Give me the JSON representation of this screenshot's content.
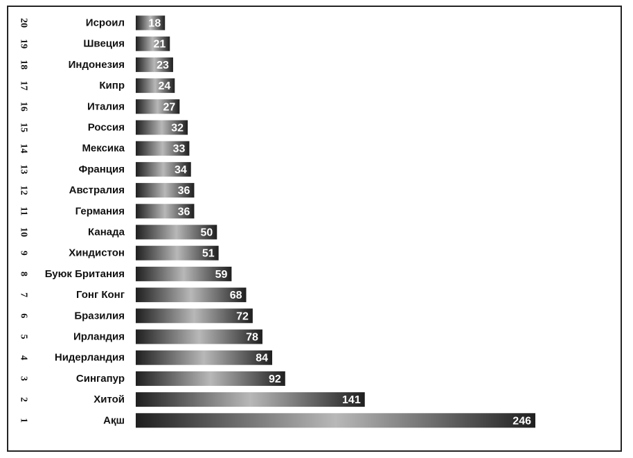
{
  "chart_data": {
    "type": "bar",
    "orientation": "horizontal",
    "title": "",
    "xlabel": "",
    "ylabel": "",
    "grid": false,
    "legend": "none",
    "xlim": [
      0,
      246
    ],
    "bar_color_dark": "#1f1f1f",
    "bar_color_light": "#b8b8b8",
    "rows": [
      {
        "rank": "20",
        "country": "Исроил",
        "value": 18
      },
      {
        "rank": "19",
        "country": "Швеция",
        "value": 21
      },
      {
        "rank": "18",
        "country": "Индонезия",
        "value": 23
      },
      {
        "rank": "17",
        "country": "Кипр",
        "value": 24
      },
      {
        "rank": "16",
        "country": "Италия",
        "value": 27
      },
      {
        "rank": "15",
        "country": "Россия",
        "value": 32
      },
      {
        "rank": "14",
        "country": "Мексика",
        "value": 33
      },
      {
        "rank": "13",
        "country": "Франция",
        "value": 34
      },
      {
        "rank": "12",
        "country": "Австралия",
        "value": 36
      },
      {
        "rank": "11",
        "country": "Германия",
        "value": 36
      },
      {
        "rank": "10",
        "country": "Канада",
        "value": 50
      },
      {
        "rank": "9",
        "country": "Хиндистон",
        "value": 51
      },
      {
        "rank": "8",
        "country": "Буюк Британия",
        "value": 59
      },
      {
        "rank": "7",
        "country": "Гонг Конг",
        "value": 68
      },
      {
        "rank": "6",
        "country": "Бразилия",
        "value": 72
      },
      {
        "rank": "5",
        "country": "Ирландия",
        "value": 78
      },
      {
        "rank": "4",
        "country": "Нидерландия",
        "value": 84
      },
      {
        "rank": "3",
        "country": "Сингапур",
        "value": 92
      },
      {
        "rank": "2",
        "country": "Хитой",
        "value": 141
      },
      {
        "rank": "1",
        "country": "Ақш",
        "value": 246
      }
    ]
  }
}
